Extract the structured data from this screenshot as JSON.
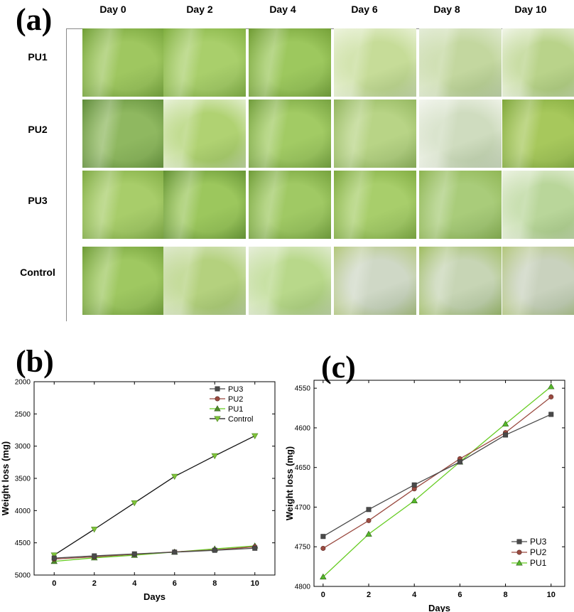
{
  "panel_labels": {
    "a": "(a)",
    "b": "(b)",
    "c": "(c)"
  },
  "grid": {
    "columns": [
      "Day 0",
      "Day 2",
      "Day 4",
      "Day 6",
      "Day 8",
      "Day 10"
    ],
    "rows": [
      "PU1",
      "PU2",
      "PU3",
      "Control"
    ],
    "photo_colors": [
      [
        "#9fc760",
        "#a9cf6b",
        "#9dc85e",
        "#c6dc98",
        "#c3d79f",
        "#b9d38a"
      ],
      [
        "#8fb860",
        "#b0d272",
        "#a2cb64",
        "#b8d486",
        "#cfdcbf",
        "#a7c85c"
      ],
      [
        "#a8cd6a",
        "#9cc75d",
        "#a0c964",
        "#a8ce6b",
        "#a9cc7a",
        "#b9d69a"
      ],
      [
        "#9fc861",
        "#b4d17e",
        "#b8d88a",
        "#cfd8c6",
        "#c7d5b5",
        "#c9d2be"
      ]
    ],
    "photo_accents": [
      [
        "#6f9e34",
        "#7fae3e",
        "#6e9a32",
        "#eef4df",
        "#e4ecd8",
        "#f2f6ea"
      ],
      [
        "#5d8a37",
        "#eaf2dc",
        "#6f9b3a",
        "#8fb35a",
        "#f4f6ef",
        "#7ea63a"
      ],
      [
        "#7ca83f",
        "#5f8e2f",
        "#6e9b36",
        "#7ba73b",
        "#8cb34f",
        "#eef3e4"
      ],
      [
        "#6c9a33",
        "#dfe9cf",
        "#e7eedb",
        "#b2c778",
        "#9ebc5d",
        "#b3c77a"
      ]
    ]
  },
  "chart_data": [
    {
      "type": "line",
      "x": [
        0,
        2,
        4,
        6,
        8,
        10
      ],
      "xlabel": "Days",
      "ylabel": "Weight loss (mg)",
      "xlim": [
        -1,
        11
      ],
      "ylim": [
        2000,
        5000
      ],
      "y_inverted": true,
      "xticks": [
        "0",
        "2",
        "4",
        "6",
        "8",
        "10"
      ],
      "yticks": [
        "2000",
        "2500",
        "3000",
        "3500",
        "4000",
        "4500",
        "5000"
      ],
      "legend_position": "top-right",
      "series": [
        {
          "name": "PU3",
          "values": [
            4737,
            4703,
            4672,
            4645,
            4616,
            4584
          ],
          "color": "#4a4a4a",
          "marker": "square"
        },
        {
          "name": "PU2",
          "values": [
            4752,
            4717,
            4677,
            4641,
            4612,
            4561
          ],
          "color": "#9a4a40",
          "marker": "circle"
        },
        {
          "name": "PU1",
          "values": [
            4788,
            4733,
            4692,
            4643,
            4594,
            4548
          ],
          "color": "#4f8a2a",
          "marker": "triangle-up"
        },
        {
          "name": "Control",
          "values": [
            4690,
            4290,
            3880,
            3470,
            3150,
            2840
          ],
          "color": "#7fc23a",
          "marker": "triangle-down"
        }
      ]
    },
    {
      "type": "line",
      "x": [
        0,
        2,
        4,
        6,
        8,
        10
      ],
      "xlabel": "Days",
      "ylabel": "Weight loss (mg)",
      "xlim": [
        -0.4,
        10.6
      ],
      "ylim": [
        4540,
        4800
      ],
      "y_inverted": true,
      "xticks": [
        "0",
        "2",
        "4",
        "6",
        "8",
        "10"
      ],
      "yticks": [
        "4550",
        "4600",
        "4650",
        "4700",
        "4750",
        "4800"
      ],
      "legend_position": "bottom-right",
      "series": [
        {
          "name": "PU3",
          "values": [
            4737,
            4703,
            4672,
            4643,
            4609,
            4583
          ],
          "color": "#4a4a4a",
          "marker": "square"
        },
        {
          "name": "PU2",
          "values": [
            4752,
            4717,
            4677,
            4639,
            4606,
            4561
          ],
          "color": "#9a4a40",
          "marker": "circle"
        },
        {
          "name": "PU1",
          "values": [
            4788,
            4734,
            4692,
            4643,
            4595,
            4548
          ],
          "color": "#55b82a",
          "marker": "triangle-up"
        }
      ]
    }
  ]
}
